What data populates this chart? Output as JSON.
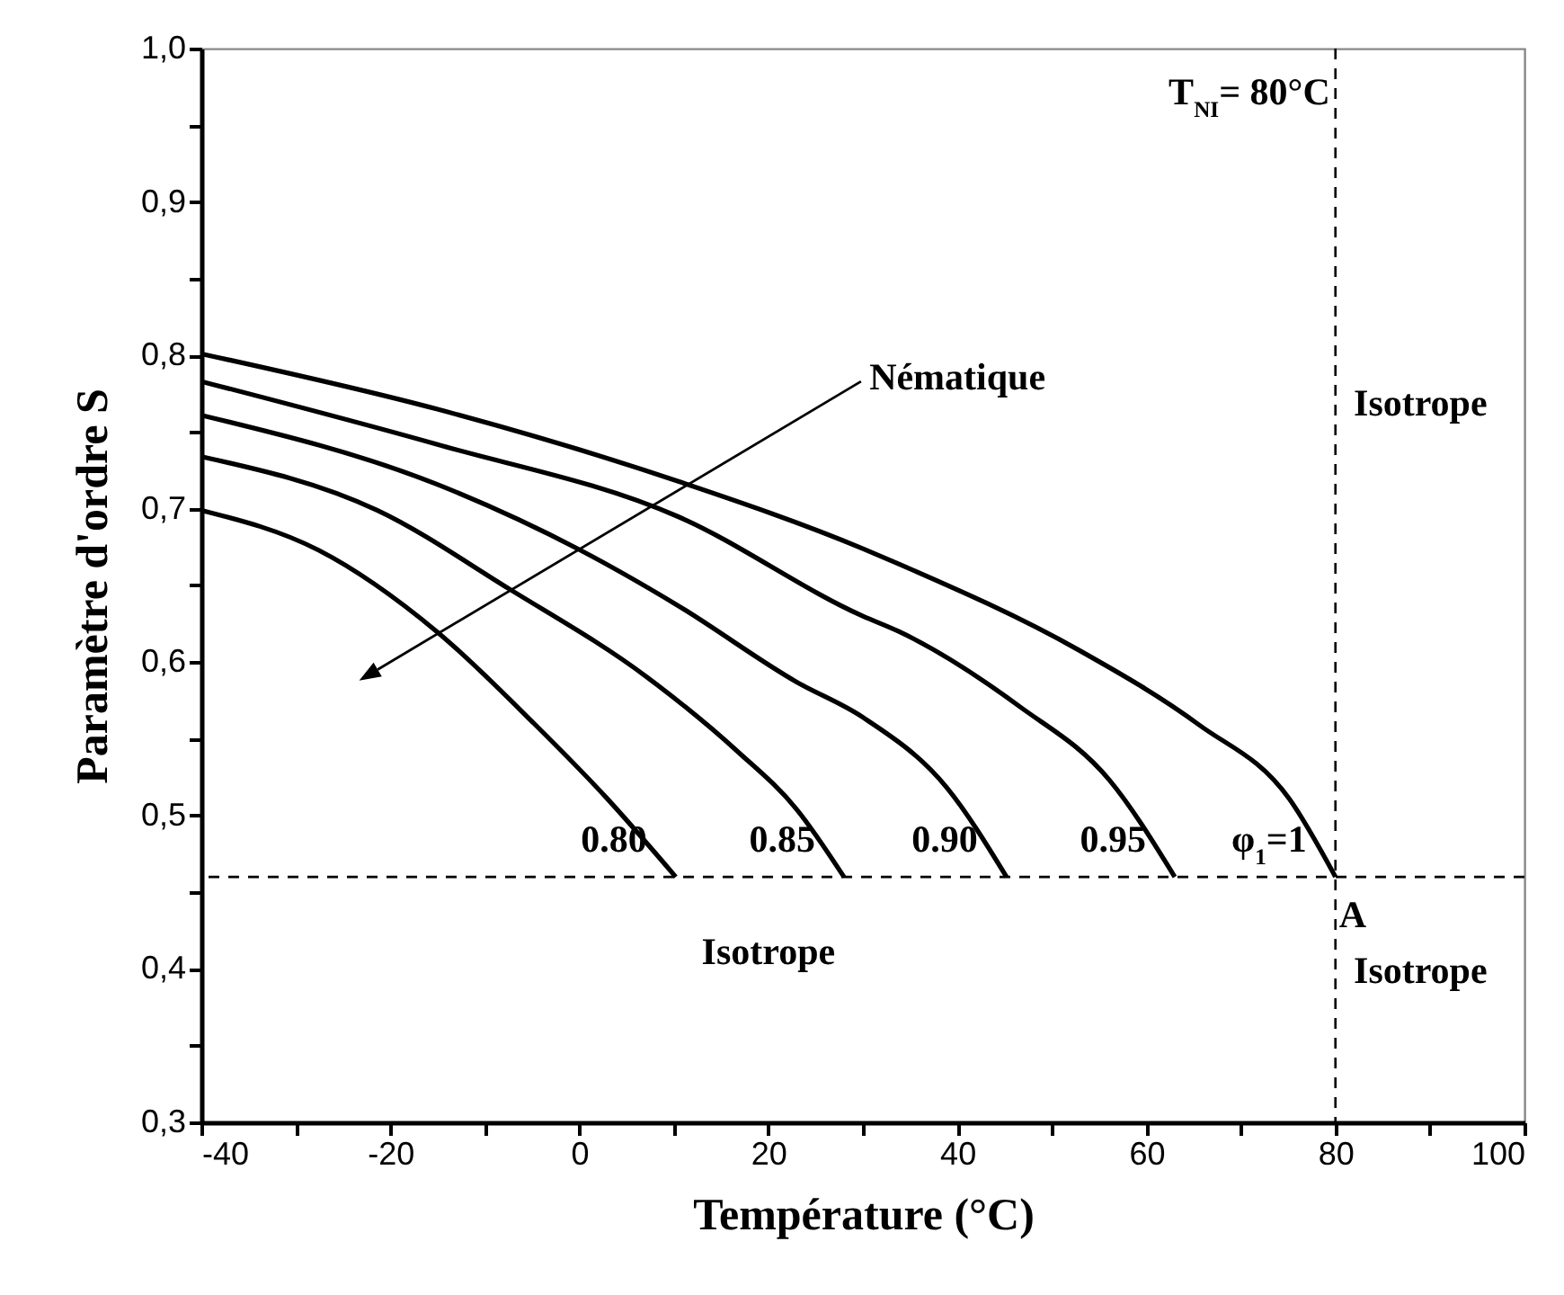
{
  "chart_data": {
    "type": "line",
    "xlabel": "Température (°C)",
    "ylabel": "Paramètre d'ordre S",
    "xlim": [
      -40,
      100
    ],
    "ylim": [
      0.3,
      1.0
    ],
    "xticks": [
      -40,
      {
        "value": -30,
        "label": null
      },
      -20,
      {
        "value": -10,
        "label": null
      },
      0,
      {
        "value": 10,
        "label": null
      },
      20,
      {
        "value": 30,
        "label": null
      },
      40,
      {
        "value": 50,
        "label": null
      },
      60,
      {
        "value": 70,
        "label": null
      },
      80,
      {
        "value": 90,
        "label": null
      },
      100
    ],
    "yticks": [
      {
        "value": 0.3,
        "label": "0,3"
      },
      {
        "value": 0.35,
        "label": null
      },
      {
        "value": 0.4,
        "label": "0,4"
      },
      {
        "value": 0.45,
        "label": null
      },
      {
        "value": 0.5,
        "label": "0,5"
      },
      {
        "value": 0.55,
        "label": null
      },
      {
        "value": 0.6,
        "label": "0,6"
      },
      {
        "value": 0.65,
        "label": null
      },
      {
        "value": 0.7,
        "label": "0,7"
      },
      {
        "value": 0.75,
        "label": null
      },
      {
        "value": 0.8,
        "label": "0,8"
      },
      {
        "value": 0.85,
        "label": null
      },
      {
        "value": 0.9,
        "label": "0,9"
      },
      {
        "value": 0.95,
        "label": null
      },
      {
        "value": 1.0,
        "label": "1,0"
      }
    ],
    "grid": false,
    "legend": false,
    "marker": "none",
    "line_style": "solid",
    "series": [
      {
        "name": "0.80",
        "color": "#000000",
        "x": [
          -40,
          -27.6,
          -15.1,
          -4.8,
          2.8,
          10.2
        ],
        "values": [
          0.699,
          0.673,
          0.62,
          0.56,
          0.512,
          0.46
        ]
      },
      {
        "name": "0.85",
        "color": "#000000",
        "x": [
          -40,
          -21.4,
          -7.5,
          7.2,
          16.7,
          23,
          28
        ],
        "values": [
          0.734,
          0.699,
          0.648,
          0.59,
          0.542,
          0.504,
          0.46
        ]
      },
      {
        "name": "0.90",
        "color": "#000000",
        "x": [
          -40,
          -15.1,
          0.1,
          10.4,
          23,
          30,
          38.9,
          45.2
        ],
        "values": [
          0.761,
          0.716,
          0.673,
          0.637,
          0.587,
          0.564,
          0.518,
          0.46
        ]
      },
      {
        "name": "0.95",
        "color": "#000000",
        "x": [
          -40,
          -15.1,
          10.4,
          30,
          33.8,
          46.6,
          56.1,
          63
        ],
        "values": [
          0.783,
          0.742,
          0.695,
          0.63,
          0.62,
          0.571,
          0.523,
          0.46
        ]
      },
      {
        "name": "φ$_{1}$=1",
        "color": "#000000",
        "x": [
          -40,
          -15.1,
          10.4,
          30,
          33.8,
          52.8,
          65.6,
          75.1,
          80
        ],
        "values": [
          0.801,
          0.765,
          0.718,
          0.674,
          0.664,
          0.608,
          0.559,
          0.511,
          0.46
        ]
      }
    ],
    "ref_lines": [
      {
        "axis": "x",
        "value": 80,
        "label": "T$_{NI}$= 80°C",
        "line_style": "dashed",
        "color": "#000000"
      },
      {
        "axis": "y",
        "value": 0.46,
        "line_style": "dashed",
        "color": "#000000"
      }
    ],
    "annotations": [
      "Nématique",
      "Isotrope",
      "Isotrope",
      "Isotrope",
      {
        "text": "A",
        "x": 80,
        "y": 0.46
      }
    ]
  }
}
